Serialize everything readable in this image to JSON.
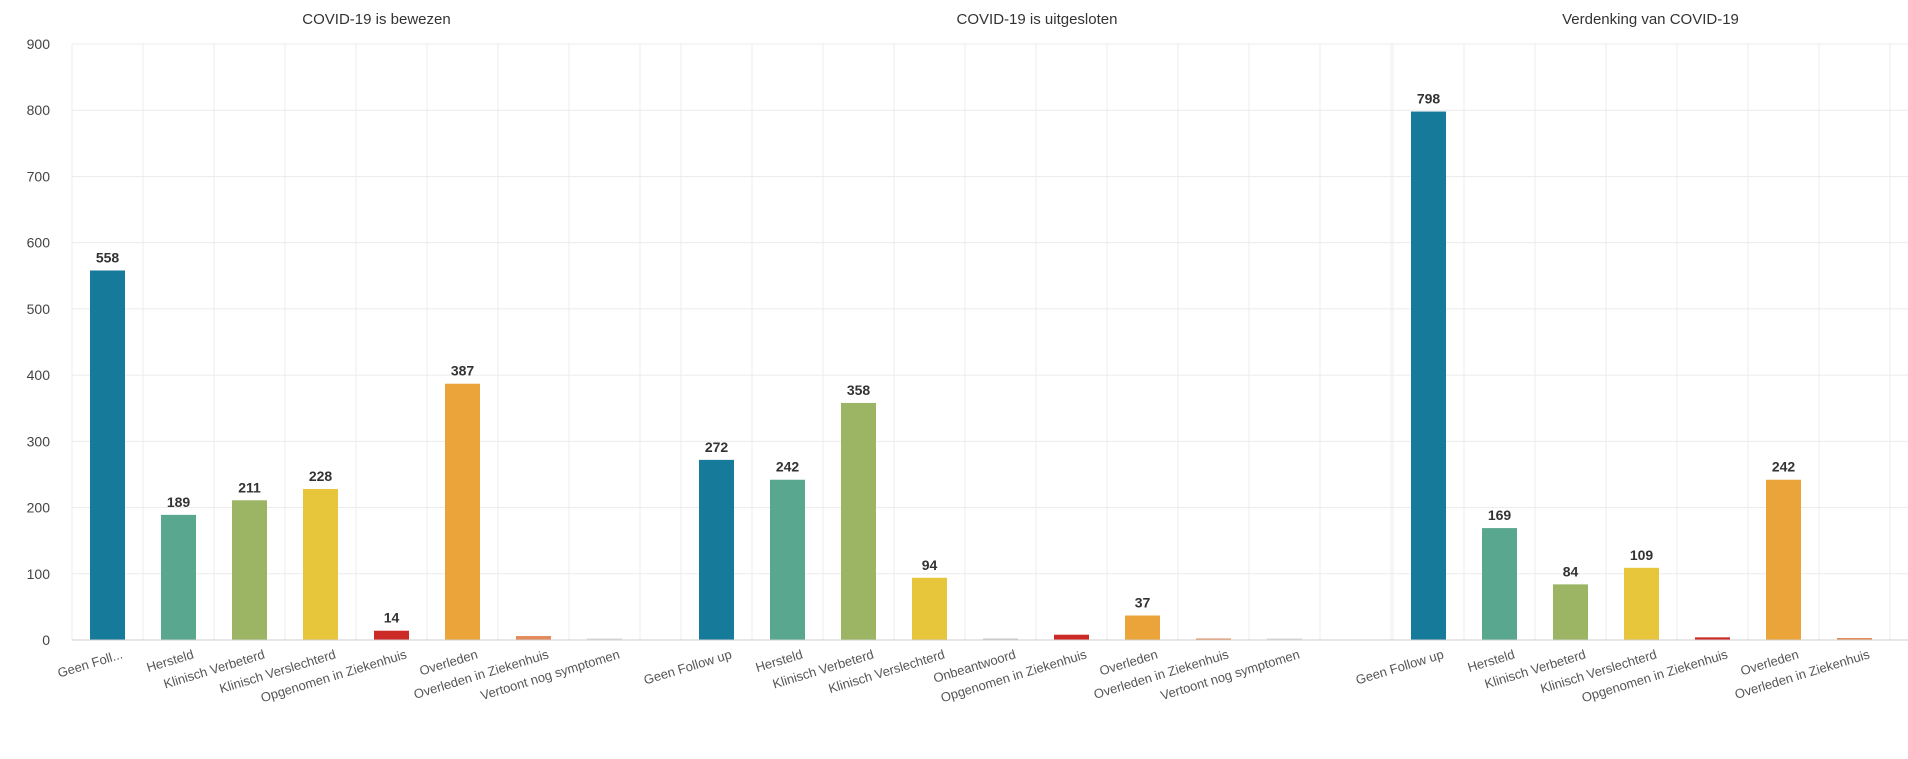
{
  "chart_data": {
    "type": "bar",
    "ylim": [
      0,
      900
    ],
    "yticks": [
      0,
      100,
      200,
      300,
      400,
      500,
      600,
      700,
      800,
      900
    ],
    "grid": true,
    "colors": {
      "Geen Follow up": "#167a9b",
      "Hersteld": "#5aa78f",
      "Klinisch Verbeterd": "#9bb565",
      "Klinisch Verslechterd": "#e8c63c",
      "Onbeantwoord": "#c9c9c9",
      "Opgenomen in Ziekenhuis": "#cc2a27",
      "Overleden": "#eba43a",
      "Overleden in Ziekenhuis": "#e58a5a",
      "Vertoont nog symptomen": "#d9d9d9"
    },
    "panels": [
      {
        "title": "COVID-19 is bewezen",
        "categories": [
          "Geen Foll...",
          "Hersteld",
          "Klinisch Verbeterd",
          "Klinisch Verslechterd",
          "Opgenomen in Ziekenhuis",
          "Overleden",
          "Overleden in Ziekenhuis",
          "Vertoont nog symptomen"
        ],
        "color_keys": [
          "Geen Follow up",
          "Hersteld",
          "Klinisch Verbeterd",
          "Klinisch Verslechterd",
          "Opgenomen in Ziekenhuis",
          "Overleden",
          "Overleden in Ziekenhuis",
          "Vertoont nog symptomen"
        ],
        "values": [
          558,
          189,
          211,
          228,
          14,
          387,
          6,
          1
        ],
        "labels": [
          "558",
          "189",
          "211",
          "228",
          "14",
          "387",
          "",
          ""
        ]
      },
      {
        "title": "COVID-19 is uitgesloten",
        "categories": [
          "Geen Follow up",
          "Hersteld",
          "Klinisch Verbeterd",
          "Klinisch Verslechterd",
          "Onbeantwoord",
          "Opgenomen in Ziekenhuis",
          "Overleden",
          "Overleden in Ziekenhuis",
          "Vertoont nog symptomen"
        ],
        "color_keys": [
          "Geen Follow up",
          "Hersteld",
          "Klinisch Verbeterd",
          "Klinisch Verslechterd",
          "Onbeantwoord",
          "Opgenomen in Ziekenhuis",
          "Overleden",
          "Overleden in Ziekenhuis",
          "Vertoont nog symptomen"
        ],
        "values": [
          272,
          242,
          358,
          94,
          1,
          8,
          37,
          1,
          1
        ],
        "labels": [
          "272",
          "242",
          "358",
          "94",
          "",
          "",
          "37",
          "",
          ""
        ]
      },
      {
        "title": "Verdenking van COVID-19",
        "categories": [
          "Geen Follow up",
          "Hersteld",
          "Klinisch Verbeterd",
          "Klinisch Verslechterd",
          "Opgenomen in Ziekenhuis",
          "Overleden",
          "Overleden in Ziekenhuis"
        ],
        "color_keys": [
          "Geen Follow up",
          "Hersteld",
          "Klinisch Verbeterd",
          "Klinisch Verslechterd",
          "Opgenomen in Ziekenhuis",
          "Overleden",
          "Overleden in Ziekenhuis"
        ],
        "values": [
          798,
          169,
          84,
          109,
          4,
          242,
          3
        ],
        "labels": [
          "798",
          "169",
          "84",
          "109",
          "",
          "242",
          ""
        ]
      }
    ]
  }
}
